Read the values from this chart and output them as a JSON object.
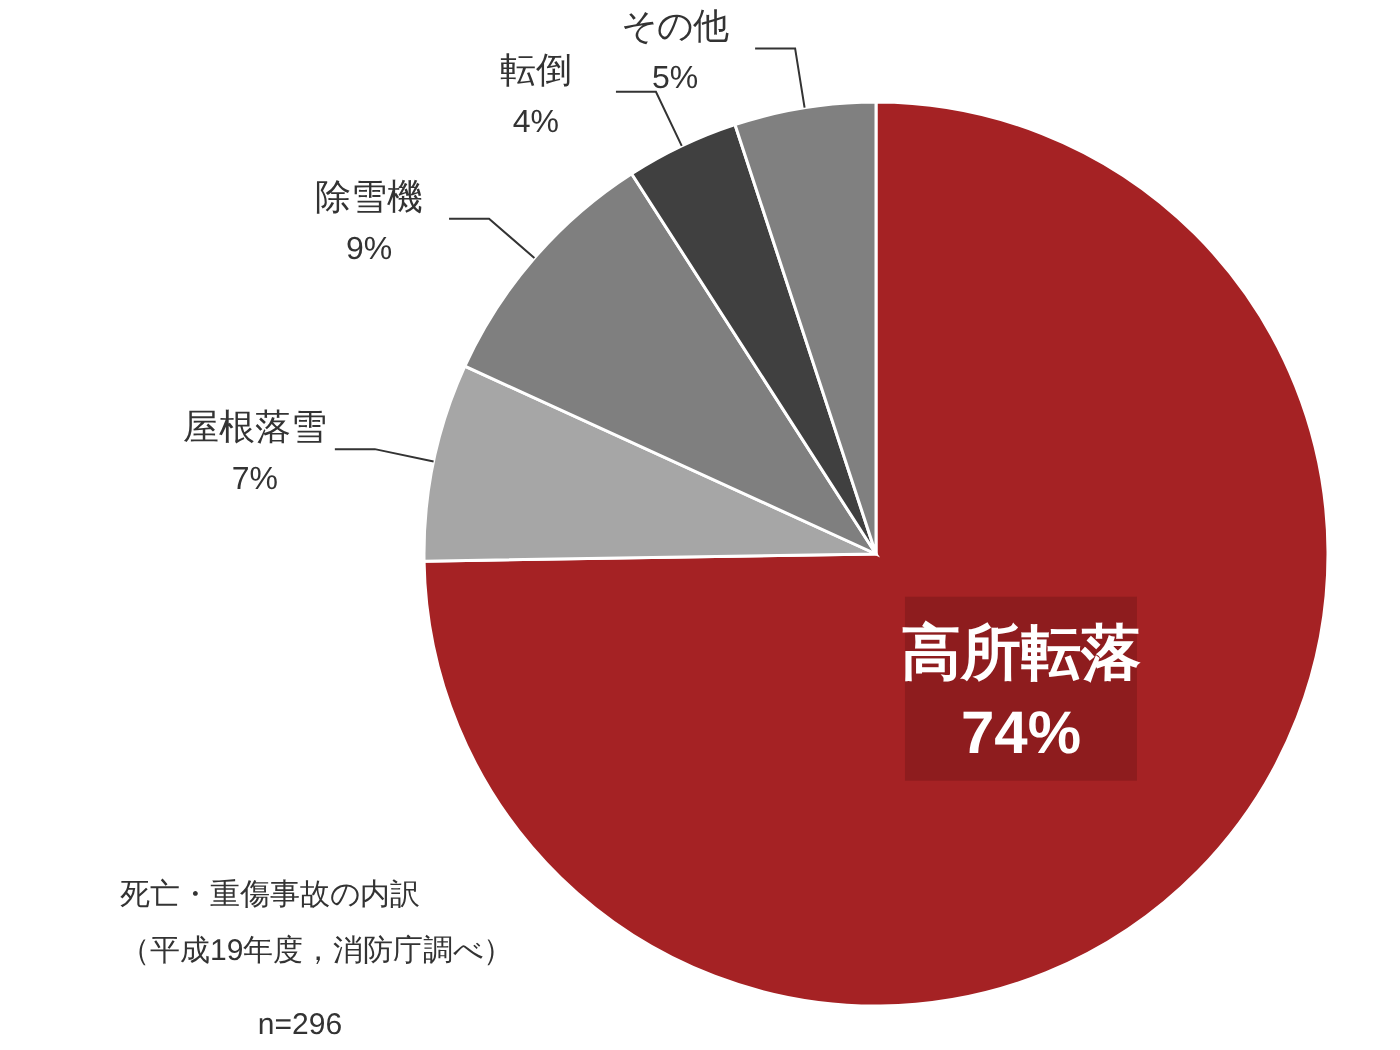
{
  "chart_data": {
    "type": "pie",
    "categories": [
      "高所転落",
      "屋根落雪",
      "除雪機",
      "転倒",
      "その他"
    ],
    "values": [
      74,
      7,
      9,
      4,
      5
    ],
    "colors": [
      "#a52224",
      "#a6a6a6",
      "#7f7f7f",
      "#404040",
      "#808080"
    ],
    "value_labels": [
      "74%",
      "7%",
      "9%",
      "4%",
      "5%"
    ],
    "annotations": [
      "死亡・重傷事故の内訳",
      "（平成19年度，消防庁調べ）",
      "n=296"
    ]
  }
}
